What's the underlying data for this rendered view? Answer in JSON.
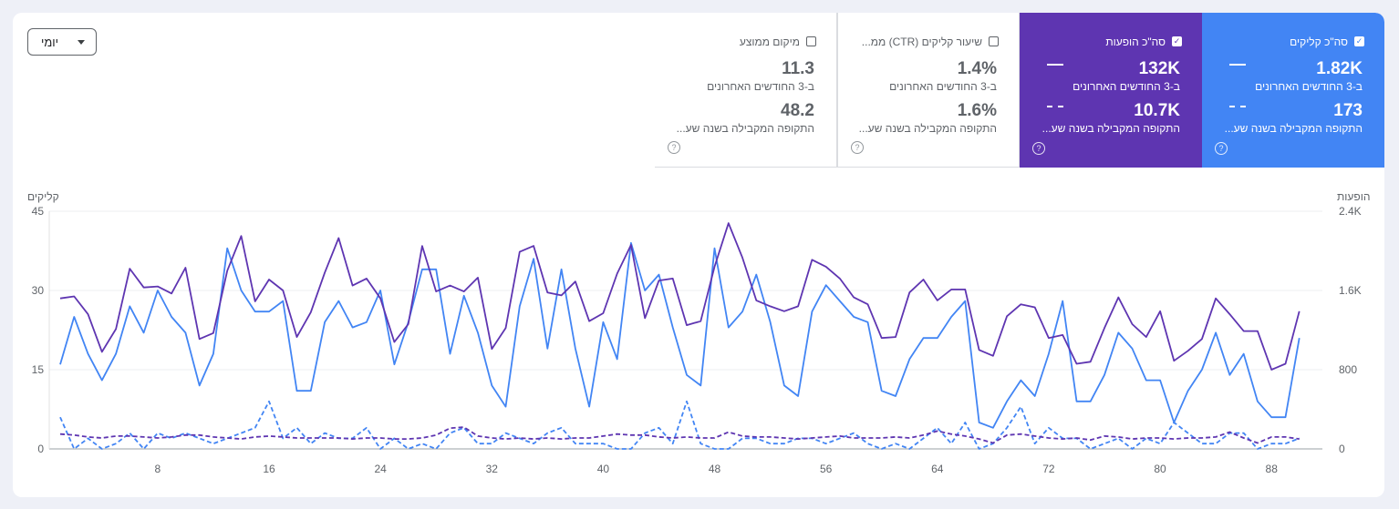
{
  "dropdown": {
    "label": "יומי"
  },
  "metrics": [
    {
      "key": "clicks",
      "title": "סה\"כ קליקים",
      "checked": true,
      "color": "#4285f4",
      "value_current": "1.82K",
      "label_current": "ב-3 החודשים האחרונים",
      "value_previous": "173",
      "label_previous": "התקופה המקבילה בשנה שע..."
    },
    {
      "key": "impressions",
      "title": "סה\"כ הופעות",
      "checked": true,
      "color": "#5e35b1",
      "value_current": "132K",
      "label_current": "ב-3 החודשים האחרונים",
      "value_previous": "10.7K",
      "label_previous": "התקופה המקבילה בשנה שע..."
    },
    {
      "key": "ctr",
      "title": "שיעור קליקים (CTR) ממ...",
      "checked": false,
      "value_current": "1.4%",
      "label_current": "ב-3 החודשים האחרונים",
      "value_previous": "1.6%",
      "label_previous": "התקופה המקבילה בשנה שע..."
    },
    {
      "key": "position",
      "title": "מיקום ממוצע",
      "checked": false,
      "value_current": "11.3",
      "label_current": "ב-3 החודשים האחרונים",
      "value_previous": "48.2",
      "label_previous": "התקופה המקבילה בשנה שע..."
    }
  ],
  "chart_data": {
    "type": "line",
    "y_left": {
      "label": "קליקים",
      "ticks": [
        0,
        15,
        30,
        45
      ],
      "range": [
        0,
        45
      ]
    },
    "y_right": {
      "label": "הופעות",
      "ticks": [
        "0",
        "800",
        "1.6K",
        "2.4K"
      ],
      "range": [
        0,
        2400
      ]
    },
    "x_range": [
      1,
      91
    ],
    "x_ticks": [
      8,
      16,
      24,
      32,
      40,
      48,
      56,
      64,
      72,
      80,
      88
    ],
    "grid": true,
    "series": [
      {
        "key": "clicks_current",
        "axis": "left",
        "color": "#4285f4",
        "style": "solid",
        "values": [
          16,
          25,
          18,
          13,
          18,
          27,
          22,
          30,
          25,
          22,
          12,
          18,
          38,
          30,
          26,
          26,
          28,
          11,
          11,
          24,
          28,
          23,
          24,
          30,
          16,
          24,
          34,
          34,
          18,
          29,
          22,
          12,
          8,
          27,
          36,
          19,
          34,
          19,
          8,
          24,
          17,
          39,
          30,
          33,
          23,
          14,
          12,
          38,
          23,
          26,
          33,
          24,
          12,
          10,
          26,
          31,
          28,
          25,
          24,
          11,
          10,
          17,
          21,
          21,
          25,
          28,
          5,
          4,
          9,
          13,
          10,
          18,
          28,
          9,
          9,
          14,
          22,
          19,
          13,
          13,
          5,
          11,
          15,
          22,
          14,
          18,
          9,
          6,
          6,
          21
        ]
      },
      {
        "key": "impressions_current",
        "axis": "right",
        "color": "#5e35b1",
        "style": "solid",
        "values": [
          1520,
          1540,
          1360,
          980,
          1210,
          1820,
          1630,
          1640,
          1570,
          1830,
          1110,
          1170,
          1800,
          2150,
          1490,
          1710,
          1600,
          1130,
          1380,
          1780,
          2130,
          1650,
          1720,
          1520,
          1080,
          1260,
          2050,
          1590,
          1650,
          1590,
          1730,
          1010,
          1220,
          1990,
          2050,
          1580,
          1550,
          1690,
          1290,
          1370,
          1770,
          2060,
          1320,
          1700,
          1720,
          1250,
          1290,
          1840,
          2280,
          1930,
          1500,
          1440,
          1390,
          1440,
          1910,
          1840,
          1720,
          1530,
          1460,
          1120,
          1130,
          1580,
          1710,
          1500,
          1610,
          1610,
          1000,
          940,
          1340,
          1460,
          1430,
          1120,
          1150,
          860,
          880,
          1220,
          1530,
          1260,
          1130,
          1390,
          890,
          990,
          1110,
          1520,
          1360,
          1190,
          1190,
          800,
          860,
          1390
        ]
      },
      {
        "key": "clicks_previous",
        "axis": "left",
        "color": "#4285f4",
        "style": "dashed",
        "values": [
          6,
          0,
          2,
          0,
          1,
          3,
          0,
          3,
          2,
          3,
          2,
          1,
          2,
          3,
          4,
          9,
          2,
          4,
          1,
          3,
          2,
          2,
          4,
          0,
          2,
          0,
          1,
          0,
          3,
          4,
          1,
          1,
          3,
          2,
          1,
          3,
          4,
          1,
          1,
          1,
          0,
          0,
          3,
          4,
          1,
          9,
          1,
          0,
          0,
          2,
          2,
          1,
          1,
          2,
          2,
          1,
          2,
          3,
          1,
          0,
          1,
          0,
          2,
          4,
          1,
          5,
          0,
          1,
          4,
          8,
          1,
          4,
          2,
          2,
          0,
          1,
          2,
          0,
          2,
          1,
          5,
          3,
          1,
          1,
          3,
          3,
          0,
          1,
          1,
          2
        ]
      },
      {
        "key": "impressions_previous",
        "axis": "right",
        "color": "#5e35b1",
        "style": "dashed",
        "values": [
          150,
          140,
          120,
          110,
          130,
          130,
          120,
          110,
          120,
          140,
          140,
          120,
          110,
          100,
          120,
          130,
          120,
          110,
          110,
          110,
          110,
          100,
          110,
          110,
          100,
          100,
          110,
          140,
          210,
          220,
          130,
          110,
          100,
          110,
          100,
          110,
          100,
          110,
          110,
          130,
          150,
          140,
          140,
          120,
          110,
          120,
          110,
          110,
          170,
          130,
          120,
          120,
          110,
          100,
          110,
          120,
          130,
          110,
          110,
          110,
          120,
          110,
          140,
          180,
          150,
          130,
          100,
          60,
          140,
          150,
          130,
          110,
          100,
          110,
          90,
          130,
          120,
          100,
          110,
          110,
          100,
          110,
          110,
          120,
          170,
          110,
          60,
          120,
          120,
          100
        ]
      }
    ]
  }
}
